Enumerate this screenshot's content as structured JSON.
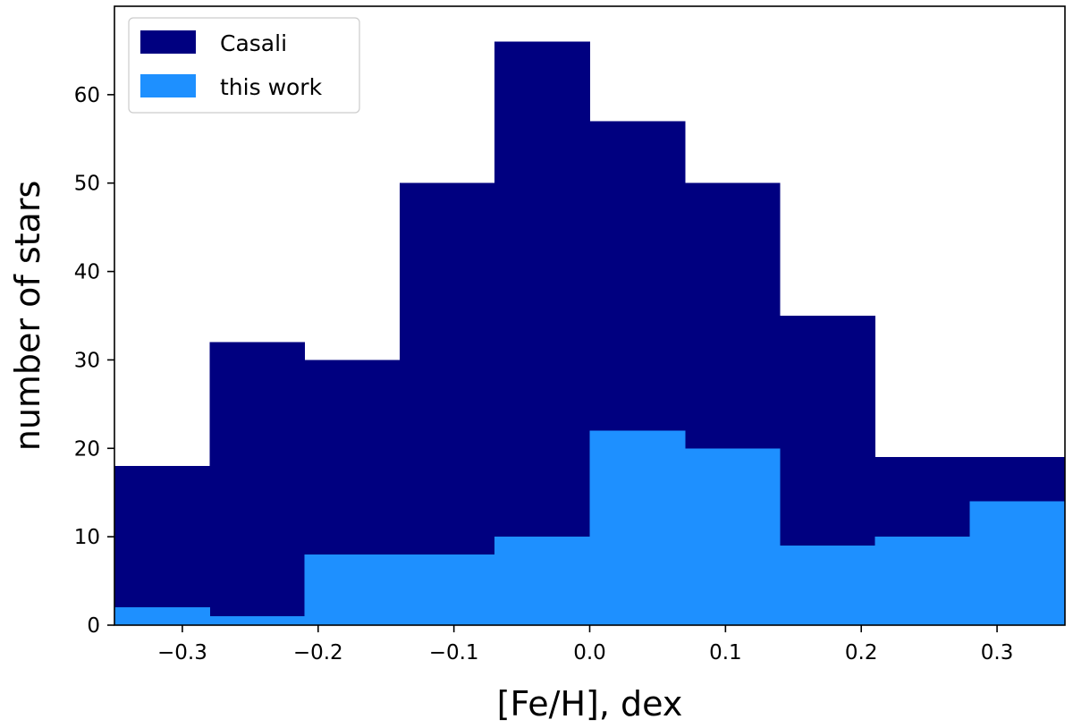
{
  "chart_data": {
    "type": "bar",
    "title": "",
    "xlabel": "[Fe/H], dex",
    "ylabel": "number of stars",
    "xlim": [
      -0.35,
      0.35
    ],
    "ylim": [
      0,
      70
    ],
    "bin_edges": [
      -0.35,
      -0.28,
      -0.21,
      -0.14,
      -0.07,
      0.0,
      0.07,
      0.14,
      0.21,
      0.28,
      0.35
    ],
    "series": [
      {
        "name": "Casali",
        "color": "#000080",
        "values": [
          18,
          32,
          30,
          50,
          66,
          57,
          50,
          35,
          19,
          19
        ]
      },
      {
        "name": "this work",
        "color": "#1E90FF",
        "values": [
          2,
          1,
          8,
          8,
          10,
          22,
          20,
          9,
          10,
          14
        ]
      }
    ],
    "x_ticks": [
      -0.3,
      -0.2,
      -0.1,
      0.0,
      0.1,
      0.2,
      0.3
    ],
    "x_tick_labels": [
      "−0.3",
      "−0.2",
      "−0.1",
      "0.0",
      "0.1",
      "0.2",
      "0.3"
    ],
    "y_ticks": [
      0,
      10,
      20,
      30,
      40,
      50,
      60
    ],
    "y_tick_labels": [
      "0",
      "10",
      "20",
      "30",
      "40",
      "50",
      "60"
    ],
    "grid": false,
    "legend_position": "top-left"
  }
}
